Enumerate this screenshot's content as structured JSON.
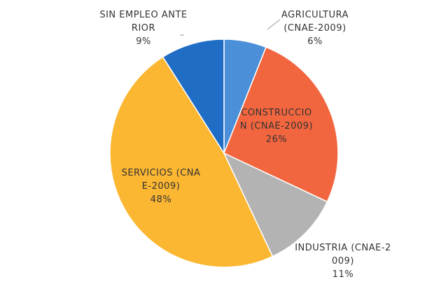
{
  "chart_data": {
    "type": "pie",
    "categories": [
      "AGRICULTURA (CNAE-2009)",
      "CONSTRUCCION (CNAE-2009)",
      "INDUSTRIA (CNAE-2009)",
      "SERVICIOS (CNAE-2009)",
      "SIN EMPLEO ANTERIOR"
    ],
    "values": [
      6,
      26,
      11,
      48,
      9
    ],
    "value_labels": [
      "6%",
      "26%",
      "11%",
      "48%",
      "9%"
    ],
    "colors": [
      "#4a8fd8",
      "#f2663f",
      "#b3b3b3",
      "#fbb632",
      "#1f6dc4"
    ]
  }
}
